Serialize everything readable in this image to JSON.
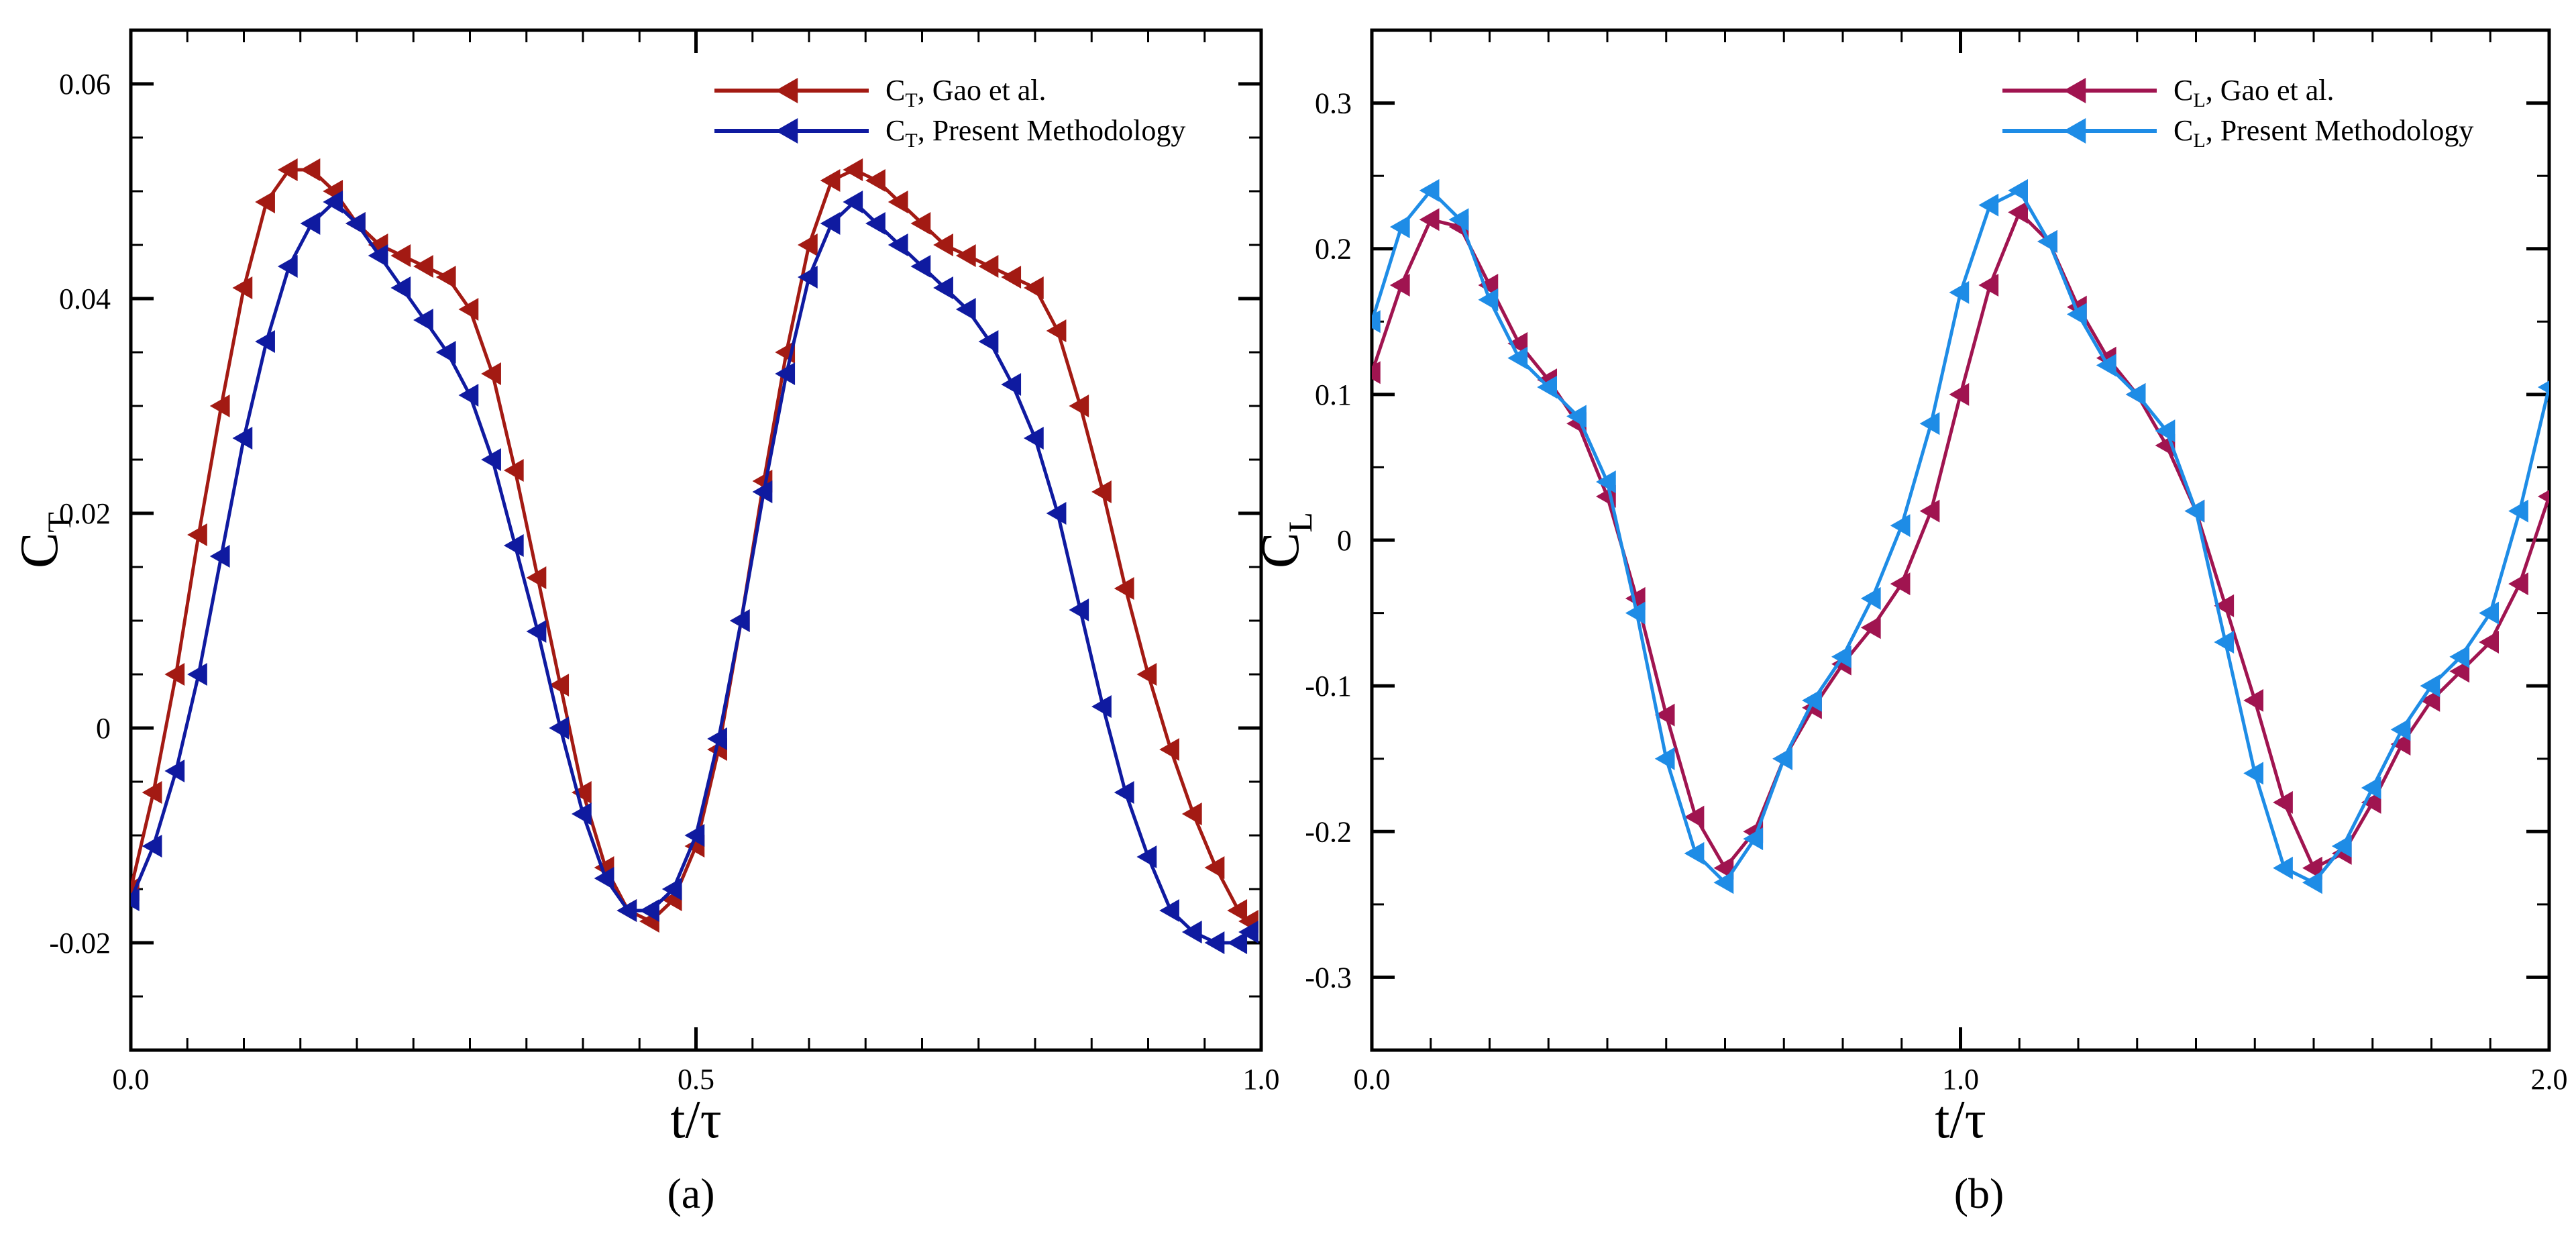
{
  "chart_data": [
    {
      "panel": "a",
      "type": "line",
      "caption": "(a)",
      "xlabel": "t/τ",
      "ylabel_main": "C",
      "ylabel_sub": "T",
      "xlim": [
        0.0,
        1.0
      ],
      "ylim": [
        -0.03,
        0.065
      ],
      "xticks_major": [
        0.0,
        0.5,
        1.0
      ],
      "xtick_labels": [
        "0.0",
        "0.5",
        "1.0"
      ],
      "xticks_minor_step": 0.05,
      "yticks_major": [
        -0.02,
        0.0,
        0.02,
        0.04,
        0.06
      ],
      "ytick_labels": [
        "-0.02",
        "0",
        "0.02",
        "0.04",
        "0.06"
      ],
      "yticks_minor_step": 0.005,
      "grid": false,
      "legend_position": "top-right",
      "series": [
        {
          "name": "Gao et al.",
          "legend_main": "C",
          "legend_sub": "T",
          "legend_rest": ", Gao et al.",
          "color": "#a31a13",
          "marker": "left-triangle",
          "x": [
            0.0,
            0.02,
            0.04,
            0.06,
            0.08,
            0.1,
            0.12,
            0.14,
            0.16,
            0.18,
            0.2,
            0.22,
            0.24,
            0.26,
            0.28,
            0.3,
            0.32,
            0.34,
            0.36,
            0.38,
            0.4,
            0.42,
            0.44,
            0.46,
            0.48,
            0.5,
            0.52,
            0.54,
            0.56,
            0.58,
            0.6,
            0.62,
            0.64,
            0.66,
            0.68,
            0.7,
            0.72,
            0.74,
            0.76,
            0.78,
            0.8,
            0.82,
            0.84,
            0.86,
            0.88,
            0.9,
            0.92,
            0.94,
            0.96,
            0.98,
            0.99
          ],
          "y": [
            -0.015,
            -0.006,
            0.005,
            0.018,
            0.03,
            0.041,
            0.049,
            0.052,
            0.052,
            0.05,
            0.047,
            0.045,
            0.044,
            0.043,
            0.042,
            0.039,
            0.033,
            0.024,
            0.014,
            0.004,
            -0.006,
            -0.013,
            -0.017,
            -0.018,
            -0.016,
            -0.011,
            -0.002,
            0.01,
            0.023,
            0.035,
            0.045,
            0.051,
            0.052,
            0.051,
            0.049,
            0.047,
            0.045,
            0.044,
            0.043,
            0.042,
            0.041,
            0.037,
            0.03,
            0.022,
            0.013,
            0.005,
            -0.002,
            -0.008,
            -0.013,
            -0.017,
            -0.018
          ]
        },
        {
          "name": "Present Methodology",
          "legend_main": "C",
          "legend_sub": "T",
          "legend_rest": ", Present Methodology",
          "color": "#0f1aa0",
          "marker": "left-triangle",
          "x": [
            0.0,
            0.02,
            0.04,
            0.06,
            0.08,
            0.1,
            0.12,
            0.14,
            0.16,
            0.18,
            0.2,
            0.22,
            0.24,
            0.26,
            0.28,
            0.3,
            0.32,
            0.34,
            0.36,
            0.38,
            0.4,
            0.42,
            0.44,
            0.46,
            0.48,
            0.5,
            0.52,
            0.54,
            0.56,
            0.58,
            0.6,
            0.62,
            0.64,
            0.66,
            0.68,
            0.7,
            0.72,
            0.74,
            0.76,
            0.78,
            0.8,
            0.82,
            0.84,
            0.86,
            0.88,
            0.9,
            0.92,
            0.94,
            0.96,
            0.98,
            0.99
          ],
          "y": [
            -0.016,
            -0.011,
            -0.004,
            0.005,
            0.016,
            0.027,
            0.036,
            0.043,
            0.047,
            0.049,
            0.047,
            0.044,
            0.041,
            0.038,
            0.035,
            0.031,
            0.025,
            0.017,
            0.009,
            0.0,
            -0.008,
            -0.014,
            -0.017,
            -0.017,
            -0.015,
            -0.01,
            -0.001,
            0.01,
            0.022,
            0.033,
            0.042,
            0.047,
            0.049,
            0.047,
            0.045,
            0.043,
            0.041,
            0.039,
            0.036,
            0.032,
            0.027,
            0.02,
            0.011,
            0.002,
            -0.006,
            -0.012,
            -0.017,
            -0.019,
            -0.02,
            -0.02,
            -0.019
          ]
        }
      ]
    },
    {
      "panel": "b",
      "type": "line",
      "caption": "(b)",
      "xlabel": "t/τ",
      "ylabel_main": "C",
      "ylabel_sub": "L",
      "xlim": [
        0.0,
        2.0
      ],
      "ylim": [
        -0.35,
        0.35
      ],
      "xticks_major": [
        0.0,
        1.0,
        2.0
      ],
      "xtick_labels": [
        "0.0",
        "1.0",
        "2.0"
      ],
      "xticks_minor_step": 0.1,
      "yticks_major": [
        -0.3,
        -0.2,
        -0.1,
        0.0,
        0.1,
        0.2,
        0.3
      ],
      "ytick_labels": [
        "-0.3",
        "-0.2",
        "-0.1",
        "0",
        "0.1",
        "0.2",
        "0.3"
      ],
      "yticks_minor_step": 0.05,
      "grid": false,
      "legend_position": "top-right",
      "series": [
        {
          "name": "Gao et al.",
          "legend_main": "C",
          "legend_sub": "L",
          "legend_rest": ", Gao et al.",
          "color": "#a01450",
          "marker": "left-triangle",
          "x": [
            0.0,
            0.05,
            0.1,
            0.15,
            0.2,
            0.25,
            0.3,
            0.35,
            0.4,
            0.45,
            0.5,
            0.55,
            0.6,
            0.65,
            0.7,
            0.75,
            0.8,
            0.85,
            0.9,
            0.95,
            1.0,
            1.05,
            1.1,
            1.15,
            1.2,
            1.25,
            1.3,
            1.35,
            1.4,
            1.45,
            1.5,
            1.55,
            1.6,
            1.65,
            1.7,
            1.75,
            1.8,
            1.85,
            1.9,
            1.95,
            2.0
          ],
          "y": [
            0.115,
            0.175,
            0.22,
            0.215,
            0.175,
            0.135,
            0.11,
            0.08,
            0.03,
            -0.04,
            -0.12,
            -0.19,
            -0.225,
            -0.2,
            -0.15,
            -0.115,
            -0.085,
            -0.06,
            -0.03,
            0.02,
            0.1,
            0.175,
            0.225,
            0.205,
            0.16,
            0.125,
            0.1,
            0.065,
            0.02,
            -0.045,
            -0.11,
            -0.18,
            -0.225,
            -0.215,
            -0.18,
            -0.14,
            -0.11,
            -0.09,
            -0.07,
            -0.03,
            0.03
          ]
        },
        {
          "name": "Present Methodology",
          "legend_main": "C",
          "legend_sub": "L",
          "legend_rest": ", Present Methodology",
          "color": "#1e8ce6",
          "marker": "left-triangle",
          "x": [
            0.0,
            0.05,
            0.1,
            0.15,
            0.2,
            0.25,
            0.3,
            0.35,
            0.4,
            0.45,
            0.5,
            0.55,
            0.6,
            0.65,
            0.7,
            0.75,
            0.8,
            0.85,
            0.9,
            0.95,
            1.0,
            1.05,
            1.1,
            1.15,
            1.2,
            1.25,
            1.3,
            1.35,
            1.4,
            1.45,
            1.5,
            1.55,
            1.6,
            1.65,
            1.7,
            1.75,
            1.8,
            1.85,
            1.9,
            1.95,
            2.0
          ],
          "y": [
            0.15,
            0.215,
            0.24,
            0.22,
            0.165,
            0.125,
            0.105,
            0.085,
            0.04,
            -0.05,
            -0.15,
            -0.215,
            -0.235,
            -0.205,
            -0.15,
            -0.11,
            -0.08,
            -0.04,
            0.01,
            0.08,
            0.17,
            0.23,
            0.24,
            0.205,
            0.155,
            0.12,
            0.1,
            0.075,
            0.02,
            -0.07,
            -0.16,
            -0.225,
            -0.235,
            -0.21,
            -0.17,
            -0.13,
            -0.1,
            -0.08,
            -0.05,
            0.02,
            0.105
          ]
        }
      ]
    }
  ]
}
